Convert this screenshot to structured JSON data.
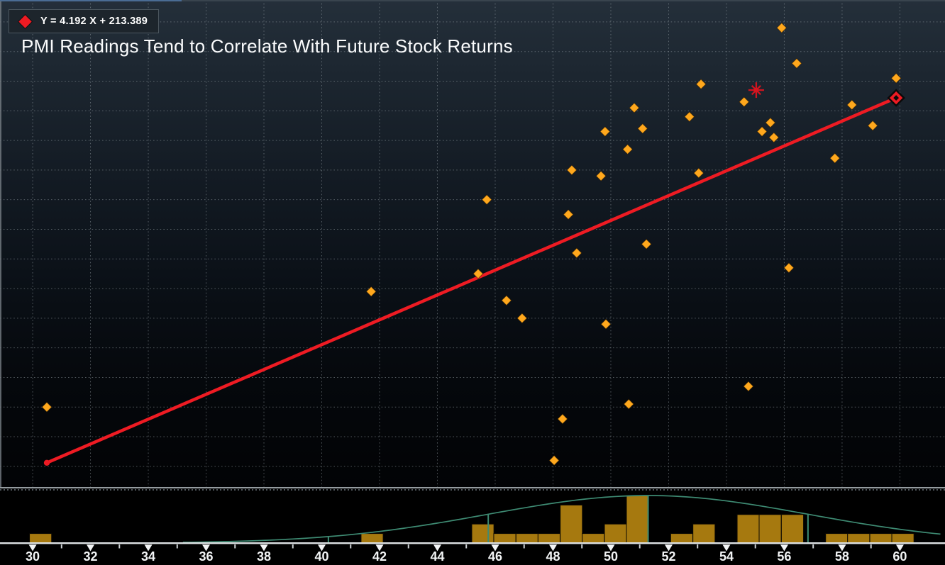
{
  "title": "PMI Readings Tend to Correlate With Future Stock Returns",
  "legend": {
    "equation": "Y = 4.192 X + 213.389",
    "marker": "red-diamond",
    "marker_color": "#ee1b23"
  },
  "colors": {
    "point": "#ffa81d",
    "point_stroke": "#2b1a00",
    "regression": "#ee1b23",
    "highlight": "#d8141f",
    "histogram_bar": "#a6790f",
    "histogram_bar_stroke": "#0c0903",
    "curve": "#3e8b73",
    "grid": "#9aa4aa",
    "axis_line": "#dde1e3",
    "tick_label": "#f2f4f5",
    "separator": "#959ca0",
    "panel_dotted_line": "#6b747a"
  },
  "chart_data": {
    "type": "scatter",
    "title": "PMI Readings Tend to Correlate With Future Stock Returns",
    "xlabel": "",
    "ylabel": "",
    "xlim": [
      28.87,
      61.56
    ],
    "ylim": [
      332.3,
      497.4
    ],
    "grid": true,
    "x_ticks": {
      "major": [
        30,
        32,
        34,
        36,
        38,
        40,
        42,
        44,
        46,
        48,
        50,
        52,
        54,
        56,
        58,
        60
      ],
      "minor": [
        31,
        33,
        35,
        37,
        39,
        41,
        43,
        45,
        47,
        49,
        51,
        53,
        55,
        57,
        59
      ]
    },
    "y_gridlines": [
      340,
      350,
      360,
      370,
      380,
      390,
      400,
      410,
      420,
      430,
      440,
      450,
      460,
      470,
      480,
      490
    ],
    "points": [
      [
        30.49,
        360
      ],
      [
        41.71,
        399
      ],
      [
        45.41,
        405
      ],
      [
        45.71,
        430
      ],
      [
        46.39,
        396
      ],
      [
        46.93,
        390
      ],
      [
        48.04,
        342
      ],
      [
        48.33,
        356
      ],
      [
        48.53,
        425
      ],
      [
        48.65,
        440
      ],
      [
        48.82,
        412
      ],
      [
        49.66,
        438
      ],
      [
        49.8,
        453
      ],
      [
        49.83,
        388
      ],
      [
        50.58,
        447
      ],
      [
        50.62,
        361
      ],
      [
        50.81,
        461
      ],
      [
        51.1,
        454
      ],
      [
        51.23,
        415
      ],
      [
        52.72,
        458
      ],
      [
        53.04,
        439
      ],
      [
        53.12,
        469
      ],
      [
        54.61,
        463
      ],
      [
        54.76,
        367
      ],
      [
        55.23,
        453
      ],
      [
        55.52,
        456
      ],
      [
        55.64,
        451
      ],
      [
        55.91,
        488
      ],
      [
        56.16,
        407
      ],
      [
        56.43,
        476
      ],
      [
        57.75,
        444
      ],
      [
        58.34,
        462
      ],
      [
        59.06,
        455
      ],
      [
        59.87,
        471
      ]
    ],
    "highlight_point": {
      "x": 55.03,
      "y": 467,
      "marker": "red-asterisk"
    },
    "regression_line": {
      "equation": "Y = 4.192 X + 213.389",
      "slope": 4.192,
      "intercept": 213.389,
      "x_start": 30.49,
      "x_end": 59.87,
      "start_marker": "dot",
      "end_marker": "diamond-outline"
    },
    "histogram": {
      "bin_width": 0.765,
      "bins": [
        [
          29.89,
          1
        ],
        [
          41.36,
          1
        ],
        [
          45.19,
          2
        ],
        [
          45.95,
          1
        ],
        [
          46.72,
          1
        ],
        [
          47.48,
          1
        ],
        [
          48.25,
          4
        ],
        [
          49.01,
          1
        ],
        [
          49.78,
          2
        ],
        [
          50.54,
          5
        ],
        [
          52.07,
          1
        ],
        [
          52.84,
          2
        ],
        [
          54.37,
          3
        ],
        [
          55.13,
          3
        ],
        [
          55.9,
          3
        ],
        [
          57.43,
          1
        ],
        [
          58.19,
          1
        ],
        [
          58.96,
          1
        ],
        [
          59.72,
          1
        ]
      ]
    },
    "distribution": {
      "mean": 51.29,
      "sigma": 5.53,
      "sd_lines": [
        40.23,
        45.76,
        51.29,
        56.82
      ]
    }
  }
}
